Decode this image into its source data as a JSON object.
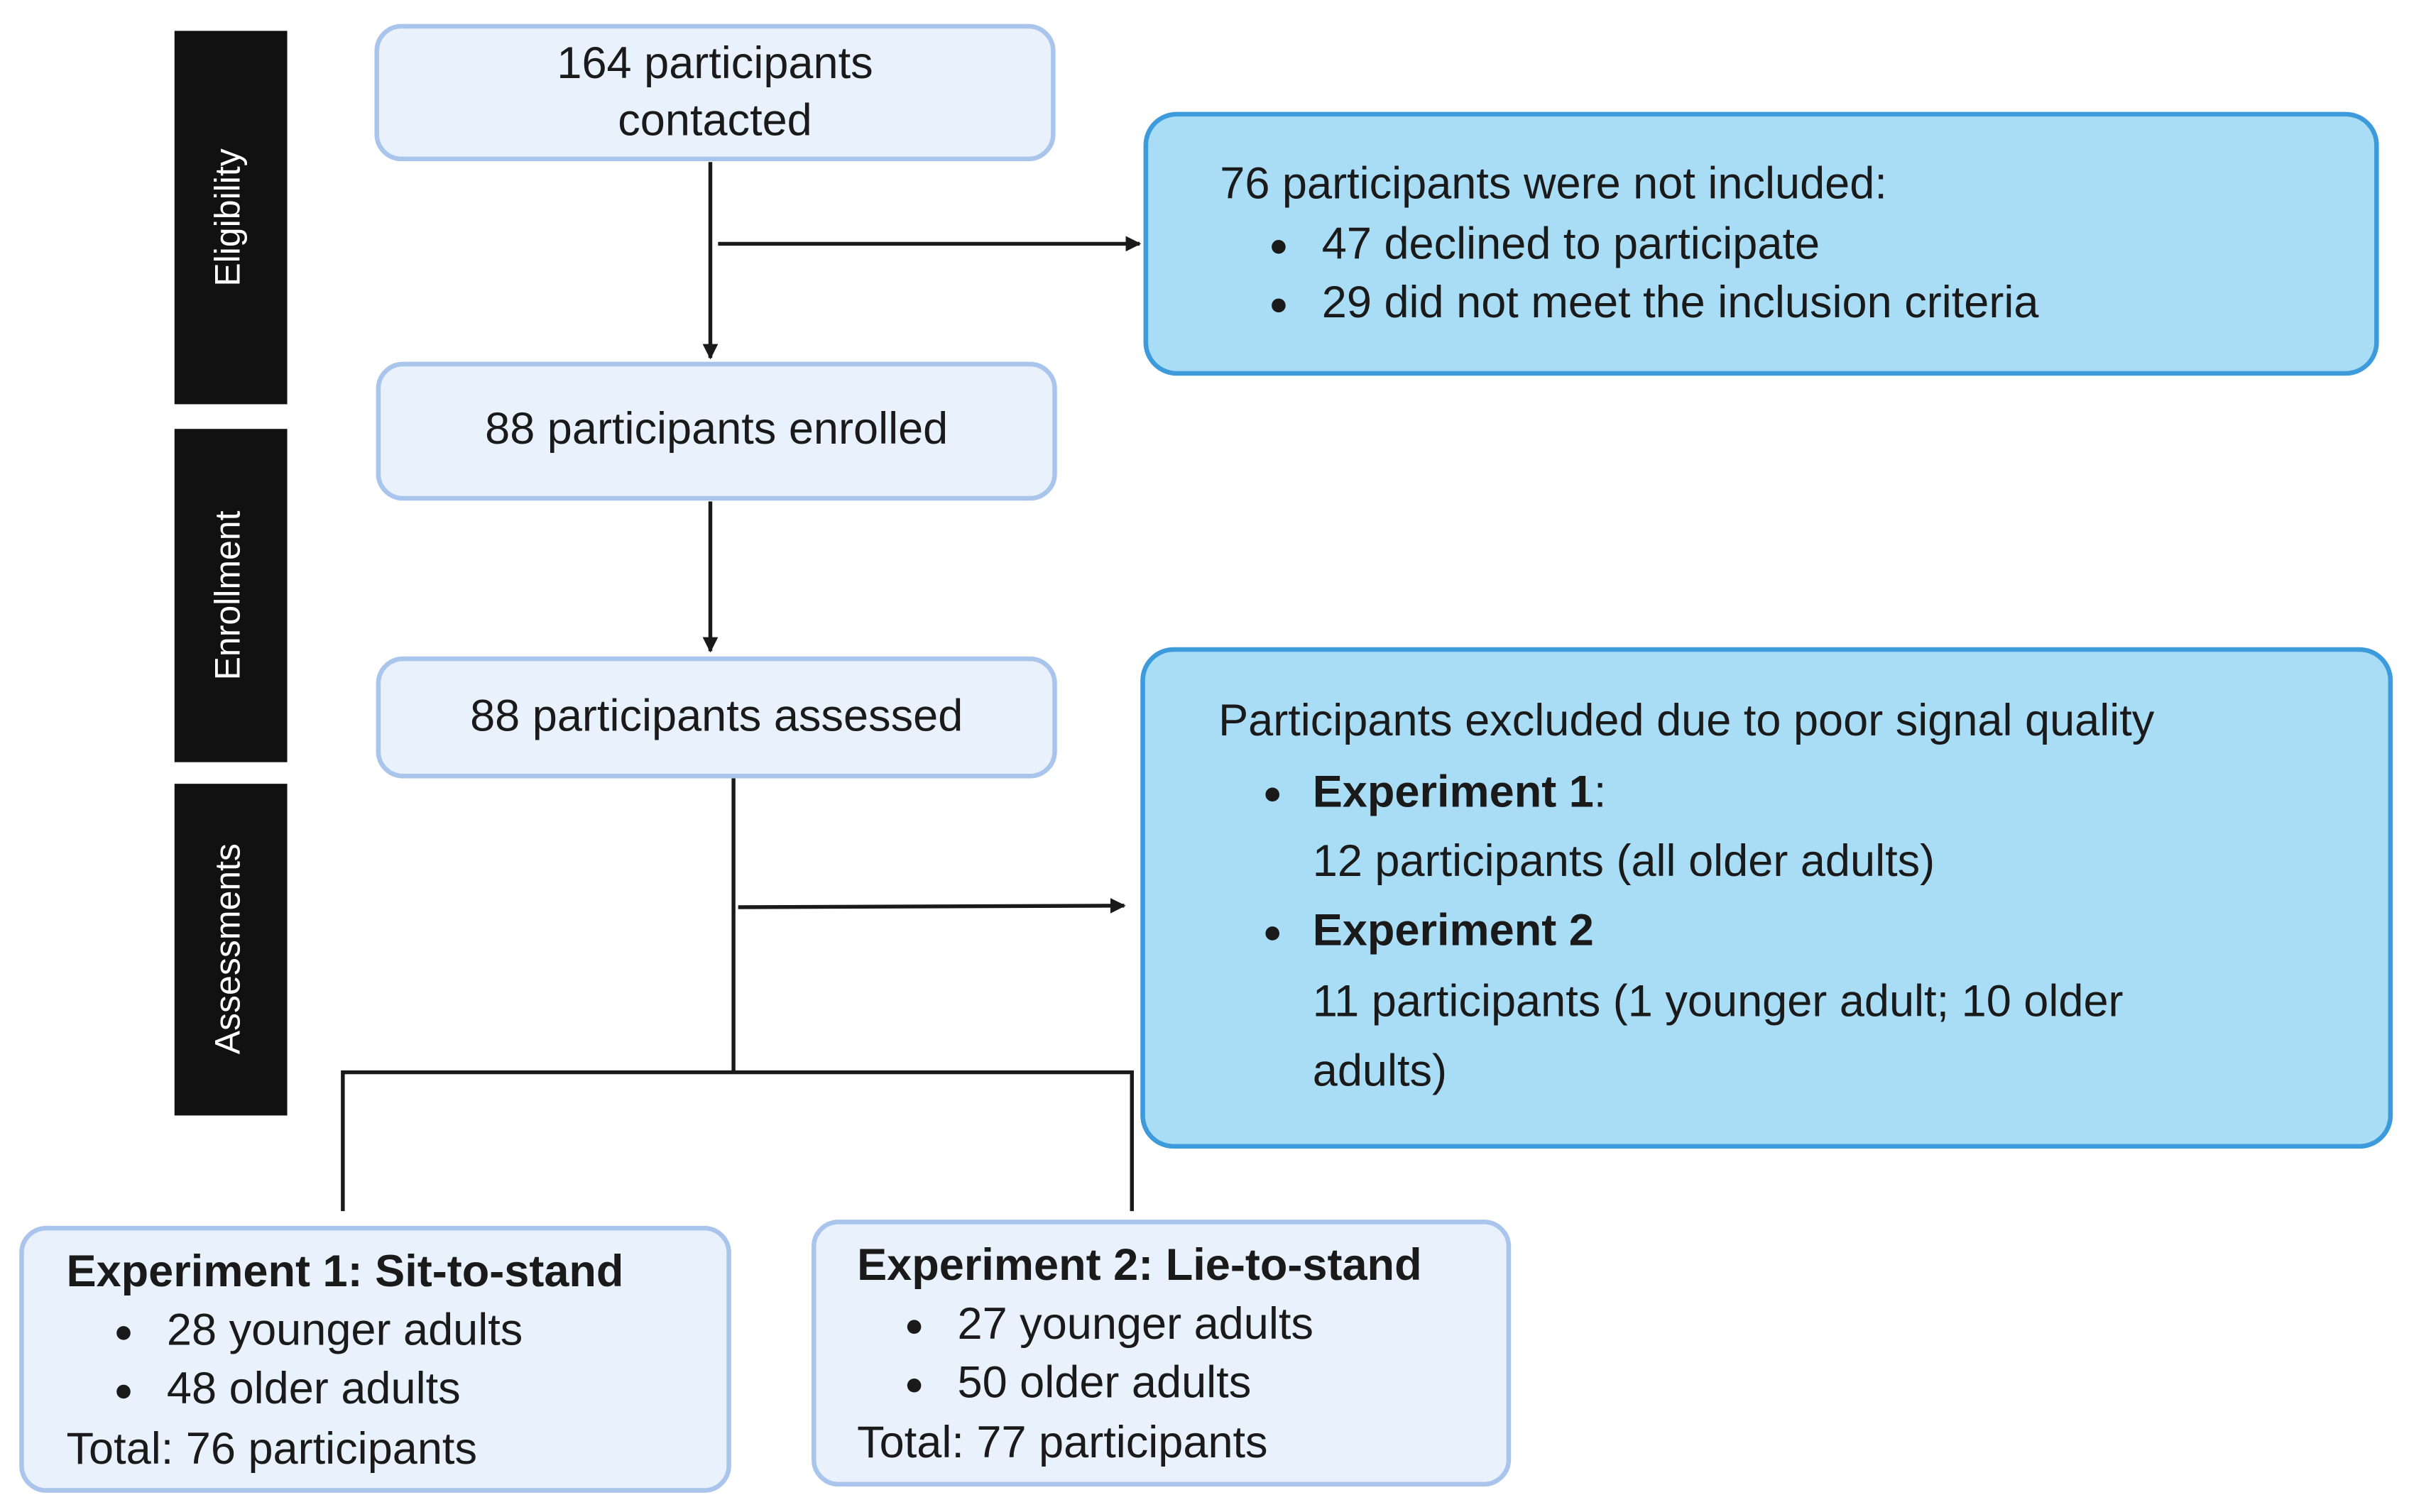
{
  "stages": [
    "Eligibility",
    "Enrollment",
    "Assessments"
  ],
  "nodes": [
    {
      "lines": [
        "164 participants",
        "contacted"
      ]
    },
    {
      "lines": [
        "88 participants enrolled"
      ]
    },
    {
      "lines": [
        "88 participants assessed"
      ]
    }
  ],
  "exclusions": [
    {
      "title": "76 participants were not included:",
      "items": [
        "47 declined to participate",
        "29 did not meet the inclusion criteria"
      ]
    },
    {
      "title": "Participants excluded due to poor signal quality",
      "items": [
        {
          "label": "Experiment 1",
          "suffix": ":",
          "detail": [
            "12 participants (all older adults)"
          ]
        },
        {
          "label": "Experiment 2",
          "detail": [
            "11 participants (1 younger adult; 10 older",
            "adults)"
          ]
        }
      ]
    }
  ],
  "experiments": [
    {
      "title": "Experiment 1: Sit-to-stand",
      "items": [
        "28 younger adults",
        "48 older adults"
      ],
      "total": "Total: 76 participants"
    },
    {
      "title": "Experiment 2: Lie-to-stand",
      "items": [
        "27 younger adults",
        "50 older adults"
      ],
      "total": "Total: 77 participants"
    }
  ]
}
